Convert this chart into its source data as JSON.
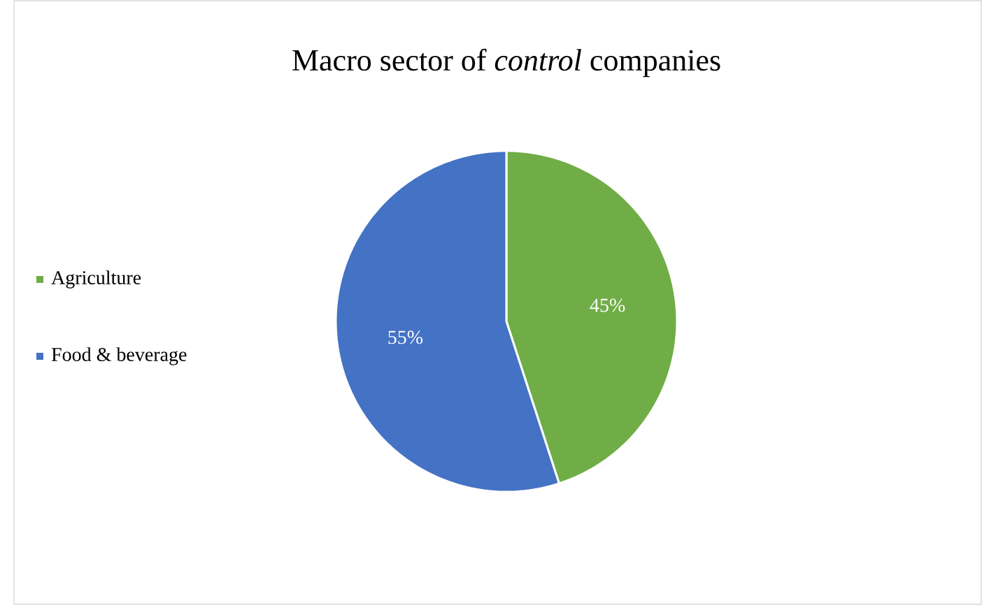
{
  "chart_data": {
    "type": "pie",
    "title": "Macro sector of *control* companies",
    "categories": [
      "Agriculture",
      "Food & beverage"
    ],
    "values": [
      45,
      55
    ],
    "colors": [
      "#70ad47",
      "#4472c4"
    ],
    "value_labels": [
      "45%",
      "55%"
    ],
    "legend": "left"
  }
}
